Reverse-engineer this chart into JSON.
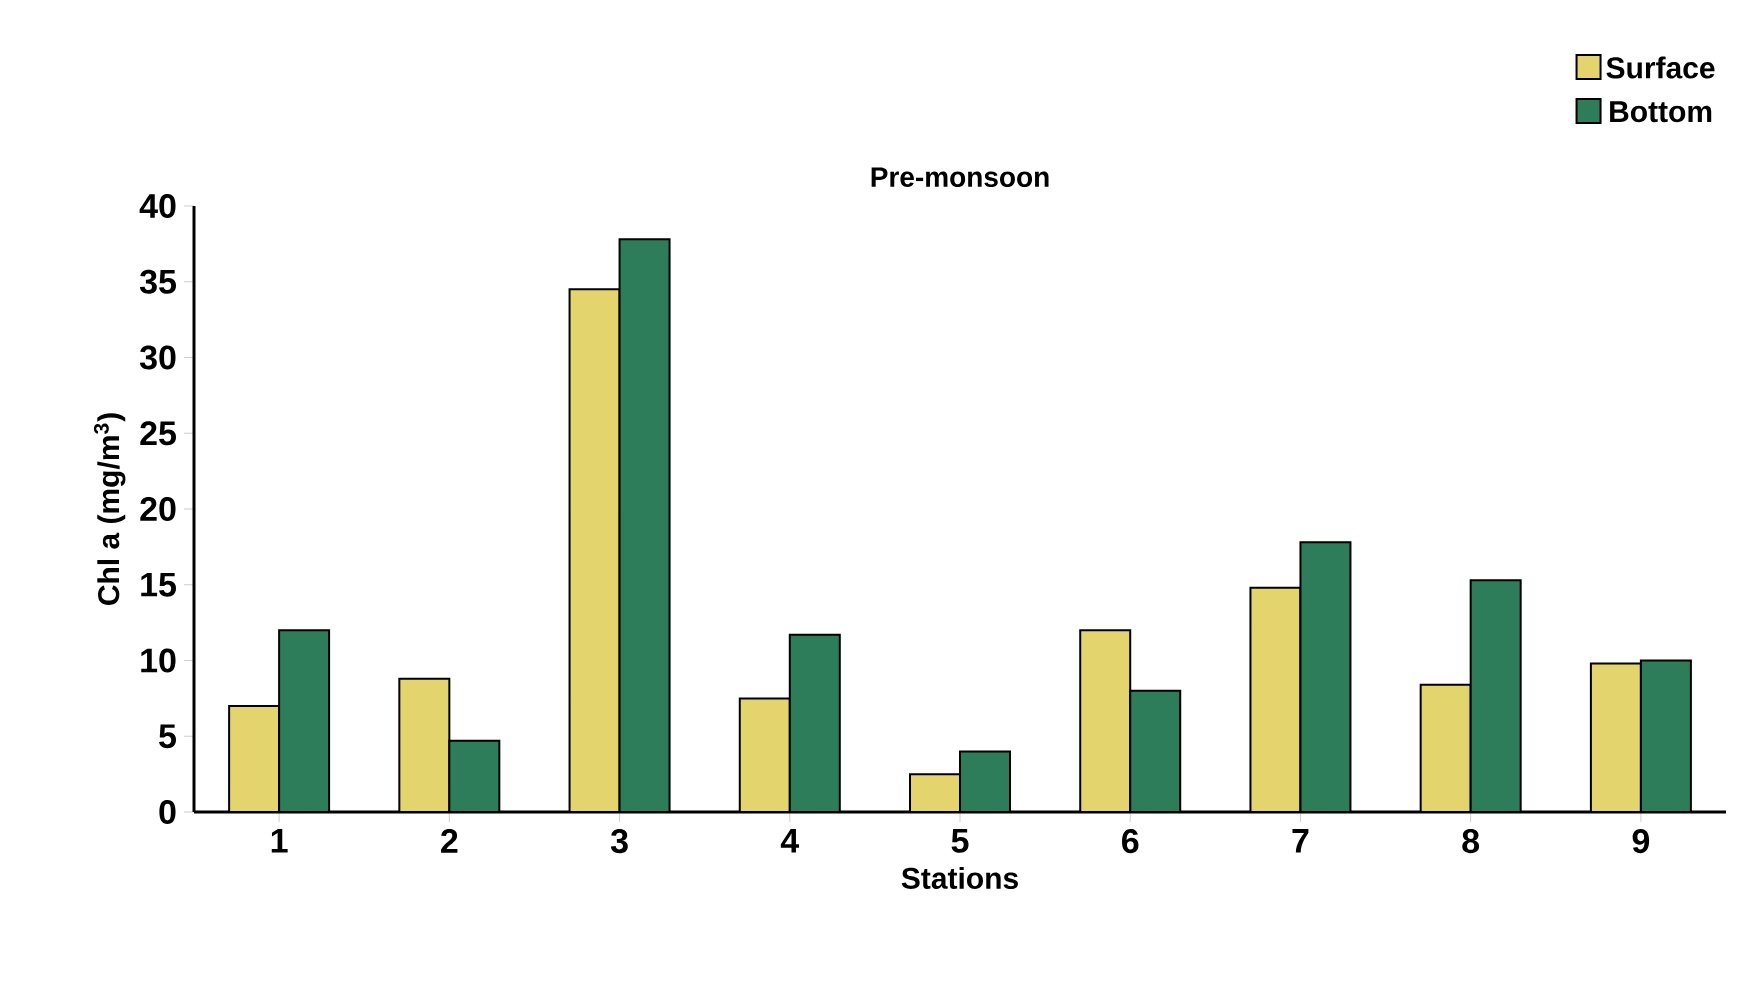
{
  "chart_data": {
    "type": "bar",
    "title": "Pre-monsoon",
    "xlabel": "Stations",
    "ylabel": "Chl a (mg/m$^{3}$)",
    "categories": [
      "1",
      "2",
      "3",
      "4",
      "5",
      "6",
      "7",
      "8",
      "9"
    ],
    "series": [
      {
        "name": "Surface",
        "color": "#e3d46e",
        "values": [
          7,
          8.8,
          34.5,
          7.5,
          2.5,
          12,
          14.8,
          8.4,
          9.8
        ]
      },
      {
        "name": "Bottom",
        "color": "#2e7d5a",
        "values": [
          12,
          4.7,
          37.8,
          11.7,
          4,
          8,
          17.8,
          15.3,
          10
        ]
      }
    ],
    "ylim": [
      0,
      40
    ],
    "yticks": [
      0,
      5,
      10,
      15,
      20,
      25,
      30,
      35,
      40
    ],
    "legend": "top right"
  }
}
